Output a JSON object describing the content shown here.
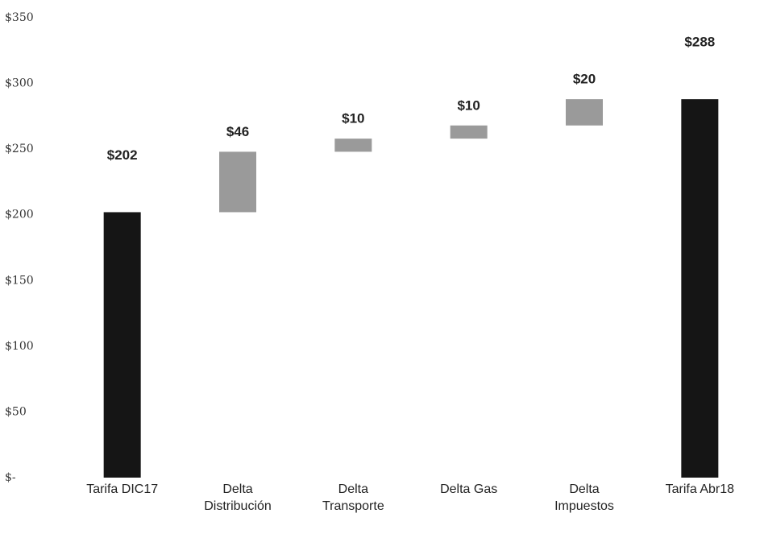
{
  "chart_data": {
    "type": "waterfall",
    "categories": [
      "Tarifa DIC17",
      "Delta Distribución",
      "Delta Transporte",
      "Delta Gas",
      "Delta Impuestos",
      "Tarifa Abr18"
    ],
    "values": [
      202,
      46,
      10,
      10,
      20,
      288
    ],
    "value_labels": [
      "$202",
      "$46",
      "$10",
      "$10",
      "$20",
      "$288"
    ],
    "is_total": [
      true,
      false,
      false,
      false,
      false,
      true
    ],
    "total_color": "#151515",
    "delta_color": "#9a9a9a",
    "ylim": [
      0,
      350
    ],
    "yticks": [
      {
        "value": 0,
        "label": "$-"
      },
      {
        "value": 50,
        "label": "$50"
      },
      {
        "value": 100,
        "label": "$100"
      },
      {
        "value": 150,
        "label": "$150"
      },
      {
        "value": 200,
        "label": "$200"
      },
      {
        "value": 250,
        "label": "$250"
      },
      {
        "value": 300,
        "label": "$300"
      },
      {
        "value": 350,
        "label": "$350"
      }
    ],
    "grid": false
  }
}
